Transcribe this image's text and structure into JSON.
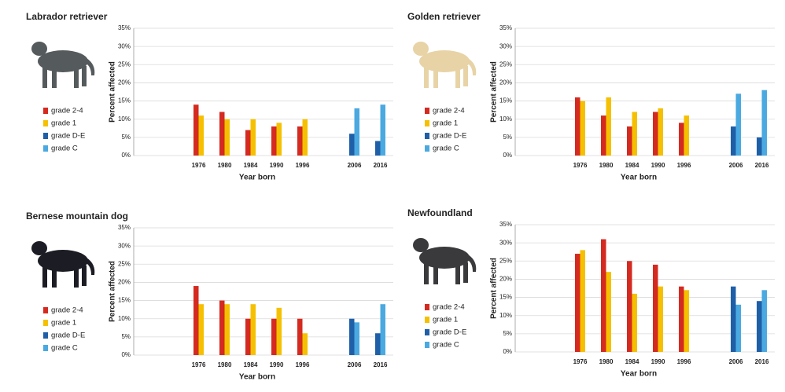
{
  "chart_data": [
    {
      "type": "bar",
      "title": "Labrador retriever",
      "xlabel": "Year born",
      "ylabel": "Percent affected",
      "categories": [
        null,
        null,
        "1976",
        "1980",
        "1984",
        "1990",
        "1996",
        null,
        "2006",
        "2016"
      ],
      "series": [
        {
          "name": "grade 2-4",
          "color": "#d42a20",
          "values": [
            null,
            null,
            14,
            12,
            7,
            8,
            8,
            null,
            null,
            null
          ]
        },
        {
          "name": "grade 1",
          "color": "#f5c000",
          "values": [
            null,
            null,
            11,
            10,
            10,
            9,
            10,
            null,
            null,
            null
          ]
        },
        {
          "name": "grade D-E",
          "color": "#1f5fa8",
          "values": [
            null,
            null,
            null,
            null,
            null,
            null,
            null,
            null,
            6,
            4
          ]
        },
        {
          "name": "grade C",
          "color": "#4aa9e0",
          "values": [
            null,
            null,
            null,
            null,
            null,
            null,
            null,
            null,
            13,
            14
          ]
        }
      ],
      "ylim": [
        0,
        35
      ],
      "yticks": [
        {
          "value": 0,
          "label": "0%"
        },
        {
          "value": 5,
          "label": "5%"
        },
        {
          "value": 10,
          "label": "10%"
        },
        {
          "value": 15,
          "label": "15%"
        },
        {
          "value": 20,
          "label": "20%"
        },
        {
          "value": 25,
          "label": "25%"
        },
        {
          "value": 30,
          "label": "30%"
        },
        {
          "value": 35,
          "label": "35%"
        }
      ],
      "grid": true
    },
    {
      "type": "bar",
      "title": "Golden retriever",
      "xlabel": "Year born",
      "ylabel": "Percent affected",
      "categories": [
        null,
        null,
        "1976",
        "1980",
        "1984",
        "1990",
        "1996",
        null,
        "2006",
        "2016"
      ],
      "series": [
        {
          "name": "grade 2-4",
          "color": "#d42a20",
          "values": [
            null,
            null,
            16,
            11,
            8,
            12,
            9,
            null,
            null,
            null
          ]
        },
        {
          "name": "grade 1",
          "color": "#f5c000",
          "values": [
            null,
            null,
            15,
            16,
            12,
            13,
            11,
            null,
            null,
            null
          ]
        },
        {
          "name": "grade D-E",
          "color": "#1f5fa8",
          "values": [
            null,
            null,
            null,
            null,
            null,
            null,
            null,
            null,
            8,
            5
          ]
        },
        {
          "name": "grade C",
          "color": "#4aa9e0",
          "values": [
            null,
            null,
            null,
            null,
            null,
            null,
            null,
            null,
            17,
            18
          ]
        }
      ],
      "ylim": [
        0,
        35
      ],
      "yticks": [
        {
          "value": 0,
          "label": "0%"
        },
        {
          "value": 5,
          "label": "5%"
        },
        {
          "value": 10,
          "label": "10%"
        },
        {
          "value": 15,
          "label": "15%"
        },
        {
          "value": 20,
          "label": "20%"
        },
        {
          "value": 25,
          "label": "25%"
        },
        {
          "value": 30,
          "label": "30%"
        },
        {
          "value": 35,
          "label": "35%"
        }
      ],
      "grid": true
    },
    {
      "type": "bar",
      "title": "Bernese mountain dog",
      "xlabel": "Year born",
      "ylabel": "Percent affected",
      "categories": [
        null,
        null,
        "1976",
        "1980",
        "1984",
        "1990",
        "1996",
        null,
        "2006",
        "2016"
      ],
      "series": [
        {
          "name": "grade 2-4",
          "color": "#d42a20",
          "values": [
            null,
            null,
            19,
            15,
            10,
            10,
            10,
            null,
            null,
            null
          ]
        },
        {
          "name": "grade 1",
          "color": "#f5c000",
          "values": [
            null,
            null,
            14,
            14,
            14,
            13,
            6,
            null,
            null,
            null
          ]
        },
        {
          "name": "grade D-E",
          "color": "#1f5fa8",
          "values": [
            null,
            null,
            null,
            null,
            null,
            null,
            null,
            null,
            10,
            6
          ]
        },
        {
          "name": "grade C",
          "color": "#4aa9e0",
          "values": [
            null,
            null,
            null,
            null,
            null,
            null,
            null,
            null,
            9,
            14
          ]
        }
      ],
      "ylim": [
        0,
        35
      ],
      "yticks": [
        {
          "value": 0,
          "label": "0%"
        },
        {
          "value": 5,
          "label": "5%"
        },
        {
          "value": 10,
          "label": "10%"
        },
        {
          "value": 15,
          "label": "15%"
        },
        {
          "value": 20,
          "label": "20%"
        },
        {
          "value": 25,
          "label": "25%"
        },
        {
          "value": 30,
          "label": "30%"
        },
        {
          "value": 35,
          "label": "35%"
        }
      ],
      "grid": true
    },
    {
      "type": "bar",
      "title": "Newfoundland",
      "xlabel": "Year born",
      "ylabel": "Percent affected",
      "categories": [
        null,
        null,
        "1976",
        "1980",
        "1984",
        "1990",
        "1996",
        null,
        "2006",
        "2016"
      ],
      "series": [
        {
          "name": "grade 2-4",
          "color": "#d42a20",
          "values": [
            null,
            null,
            27,
            31,
            25,
            24,
            18,
            null,
            null,
            null
          ]
        },
        {
          "name": "grade 1",
          "color": "#f5c000",
          "values": [
            null,
            null,
            28,
            22,
            16,
            18,
            17,
            null,
            null,
            null
          ]
        },
        {
          "name": "grade D-E",
          "color": "#1f5fa8",
          "values": [
            null,
            null,
            null,
            null,
            null,
            null,
            null,
            null,
            18,
            14
          ]
        },
        {
          "name": "grade C",
          "color": "#4aa9e0",
          "values": [
            null,
            null,
            null,
            null,
            null,
            null,
            null,
            null,
            13,
            17
          ]
        }
      ],
      "ylim": [
        0,
        35
      ],
      "yticks": [
        {
          "value": 0,
          "label": "0%"
        },
        {
          "value": 5,
          "label": "5%"
        },
        {
          "value": 10,
          "label": "10%"
        },
        {
          "value": 15,
          "label": "15%"
        },
        {
          "value": 20,
          "label": "20%"
        },
        {
          "value": 25,
          "label": "25%"
        },
        {
          "value": 30,
          "label": "30%"
        },
        {
          "value": 35,
          "label": "35%"
        }
      ],
      "grid": true
    }
  ]
}
